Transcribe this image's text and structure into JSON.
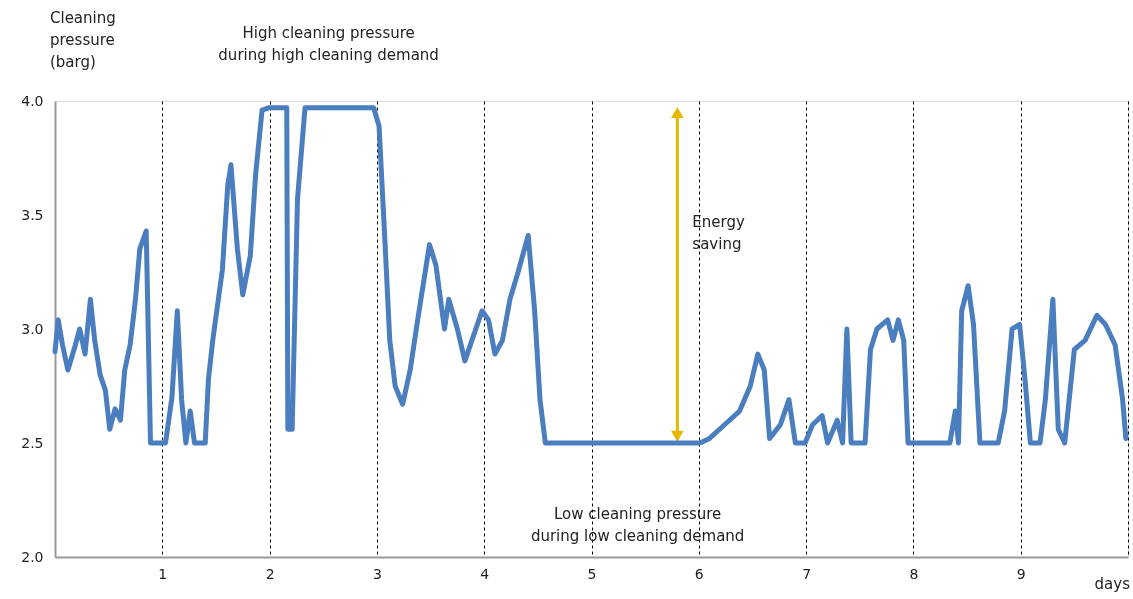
{
  "chart_data": {
    "type": "line",
    "xlabel": "days",
    "ylabel": "Cleaning pressure (barg)",
    "xlim": [
      0,
      10
    ],
    "ylim": [
      2,
      4
    ],
    "xticks": [
      1,
      2,
      3,
      4,
      5,
      6,
      7,
      8,
      9,
      {
        "value": 10,
        "label": null
      }
    ],
    "yticks": [
      {
        "value": 2,
        "label": "2.0"
      },
      2.5,
      {
        "value": 3,
        "label": "3.0"
      },
      3.5,
      {
        "value": 4,
        "label": "4.0"
      }
    ],
    "grid": "x",
    "line_style": "solid",
    "marker": "none",
    "annotations": [
      "High cleaning pressure\nduring high cleaning demand",
      "Low cleaning pressure\nduring low cleaning demand",
      "Energy\nsaving"
    ],
    "series": [
      {
        "color": "#e6b800",
        "marker": "triangle",
        "x": [
          5.8,
          5.8
        ],
        "values": [
          2.53,
          3.95
        ]
      },
      {
        "color": "#4a7ebf",
        "x": [
          0,
          0.03,
          0.07,
          0.12,
          0.19,
          0.23,
          0.28,
          0.33,
          0.37,
          0.42,
          0.47,
          0.51,
          0.56,
          0.61,
          0.65,
          0.7,
          0.75,
          0.79,
          0.85,
          0.89,
          1.03,
          1.09,
          1.14,
          1.18,
          1.22,
          1.26,
          1.3,
          1.4,
          1.43,
          1.47,
          1.56,
          1.61,
          1.64,
          1.7,
          1.75,
          1.82,
          1.87,
          1.93,
          1.99,
          2.16,
          2.17,
          2.21,
          2.26,
          2.33,
          2.66,
          2.97,
          3.02,
          3.07,
          3.12,
          3.17,
          3.24,
          3.31,
          3.38,
          3.49,
          3.55,
          3.63,
          3.67,
          3.75,
          3.82,
          3.98,
          4.04,
          4.1,
          4.17,
          4.24,
          4.31,
          4.41,
          4.47,
          4.52,
          4.57,
          6.01,
          6.1,
          6.24,
          6.38,
          6.48,
          6.55,
          6.61,
          6.66,
          6.76,
          6.84,
          6.9,
          6.99,
          7.06,
          7.15,
          7.2,
          7.29,
          7.34,
          7.38,
          7.42,
          7.55,
          7.6,
          7.66,
          7.76,
          7.81,
          7.86,
          7.91,
          7.95,
          8.34,
          8.39,
          8.42,
          8.45,
          8.51,
          8.56,
          8.62,
          8.79,
          8.85,
          8.92,
          8.99,
          9.04,
          9.09,
          9.18,
          9.23,
          9.3,
          9.35,
          9.41,
          9.5,
          9.6,
          9.71,
          9.79,
          9.88,
          9.95,
          9.98
        ],
        "values": [
          2.9,
          3.04,
          2.93,
          2.82,
          2.93,
          3.0,
          2.89,
          3.13,
          2.95,
          2.8,
          2.73,
          2.56,
          2.65,
          2.6,
          2.82,
          2.93,
          3.13,
          3.35,
          3.43,
          2.5,
          2.5,
          2.7,
          3.08,
          2.69,
          2.5,
          2.64,
          2.5,
          2.5,
          2.78,
          2.95,
          3.26,
          3.63,
          3.72,
          3.35,
          3.15,
          3.32,
          3.68,
          3.96,
          3.97,
          3.97,
          2.56,
          2.56,
          3.57,
          3.97,
          3.97,
          3.97,
          3.89,
          3.43,
          2.95,
          2.75,
          2.67,
          2.82,
          3.04,
          3.37,
          3.28,
          3.0,
          3.13,
          3.0,
          2.86,
          3.08,
          3.04,
          2.89,
          2.95,
          3.13,
          3.24,
          3.41,
          3.08,
          2.69,
          2.5,
          2.5,
          2.52,
          2.58,
          2.64,
          2.75,
          2.89,
          2.82,
          2.52,
          2.58,
          2.69,
          2.5,
          2.5,
          2.58,
          2.62,
          2.5,
          2.6,
          2.5,
          3.0,
          2.5,
          2.5,
          2.91,
          3.0,
          3.04,
          2.95,
          3.04,
          2.95,
          2.5,
          2.5,
          2.64,
          2.5,
          3.08,
          3.19,
          3.02,
          2.5,
          2.5,
          2.64,
          3.0,
          3.02,
          2.78,
          2.5,
          2.5,
          2.69,
          3.13,
          2.56,
          2.5,
          2.91,
          2.95,
          3.06,
          3.02,
          2.93,
          2.69,
          2.52
        ]
      }
    ]
  }
}
